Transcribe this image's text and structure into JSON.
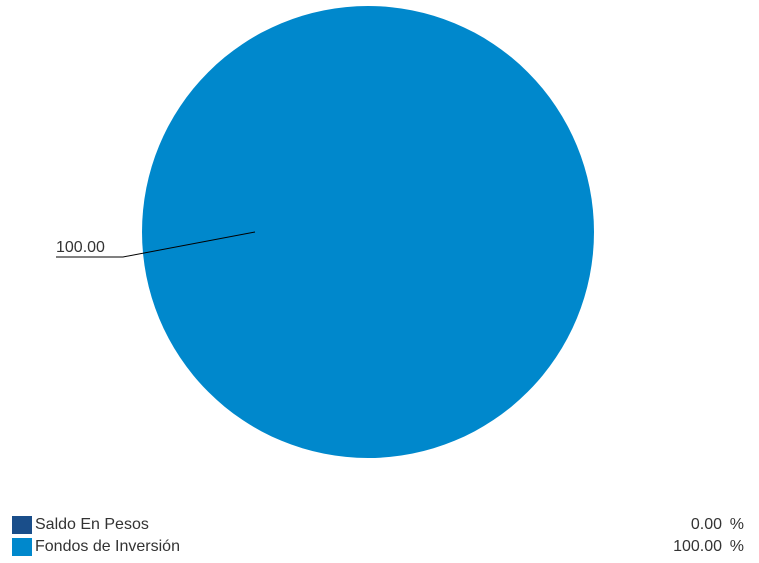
{
  "chart_data": {
    "type": "pie",
    "title": "",
    "slices": [
      {
        "name": "Saldo En Pesos",
        "value": 0.0,
        "value_text": "0.00",
        "color": "#1a4e8a"
      },
      {
        "name": "Fondos de Inversión",
        "value": 100.0,
        "value_text": "100.00",
        "color": "#0088cc"
      }
    ],
    "slice_labels": [
      "100.00"
    ],
    "unit": "%",
    "legend_position": "bottom"
  },
  "colors": {
    "leader_line": "#000000",
    "text": "#333333"
  }
}
